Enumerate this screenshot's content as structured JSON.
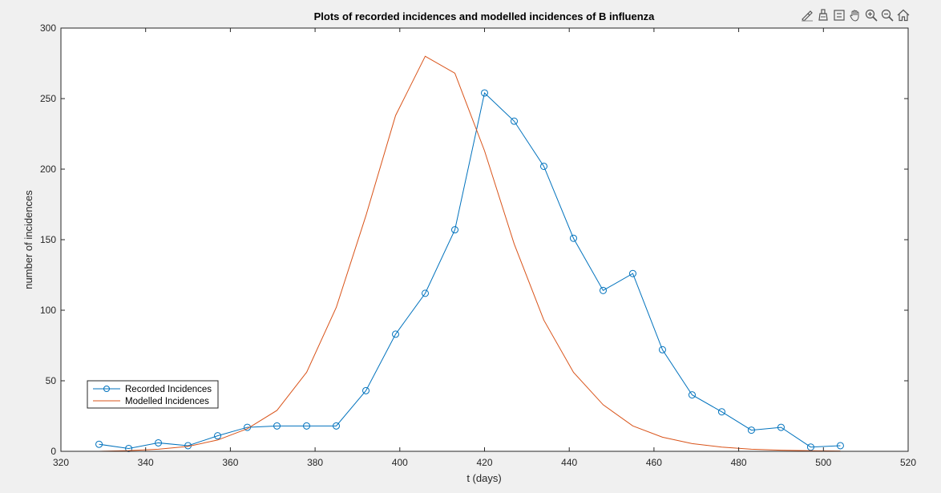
{
  "toolbar": {
    "icons": [
      "brush-icon",
      "data-cursor-icon",
      "legend-toggle-icon",
      "pan-icon",
      "zoom-in-icon",
      "zoom-out-icon",
      "home-icon"
    ]
  },
  "chart_data": {
    "type": "line",
    "title": "Plots of recorded incidences and modelled incidences of B influenza",
    "xlabel": "t (days)",
    "ylabel": "number of incidences",
    "xlim": [
      320,
      520
    ],
    "ylim": [
      0,
      300
    ],
    "xticks": [
      320,
      340,
      360,
      380,
      400,
      420,
      440,
      460,
      480,
      500,
      520
    ],
    "yticks": [
      0,
      50,
      100,
      150,
      200,
      250,
      300
    ],
    "grid": false,
    "legend_position": "bottom-left",
    "series": [
      {
        "name": "Recorded Incidences",
        "color": "#0072BD",
        "marker": "circle",
        "x": [
          329,
          336,
          343,
          350,
          357,
          364,
          371,
          378,
          385,
          392,
          399,
          406,
          413,
          420,
          427,
          434,
          441,
          448,
          455,
          462,
          469,
          476,
          483,
          490,
          497,
          504
        ],
        "y": [
          5,
          2,
          6,
          4,
          11,
          17,
          18,
          18,
          18,
          43,
          83,
          112,
          157,
          254,
          234,
          202,
          151,
          114,
          126,
          72,
          40,
          28,
          15,
          17,
          3,
          4
        ]
      },
      {
        "name": "Modelled Incidences",
        "color": "#D95319",
        "marker": "none",
        "x": [
          329,
          336,
          343,
          350,
          357,
          364,
          371,
          378,
          385,
          392,
          399,
          406,
          413,
          420,
          427,
          434,
          441,
          448,
          455,
          462,
          469,
          476,
          483,
          490,
          497,
          504
        ],
        "y": [
          0,
          0.5,
          1.5,
          3.5,
          8,
          16,
          29,
          56,
          102,
          167,
          238,
          280,
          268,
          213,
          147,
          93,
          56,
          33,
          18,
          10,
          5.5,
          3,
          1.5,
          0.8,
          0.4,
          0.2
        ]
      }
    ]
  }
}
